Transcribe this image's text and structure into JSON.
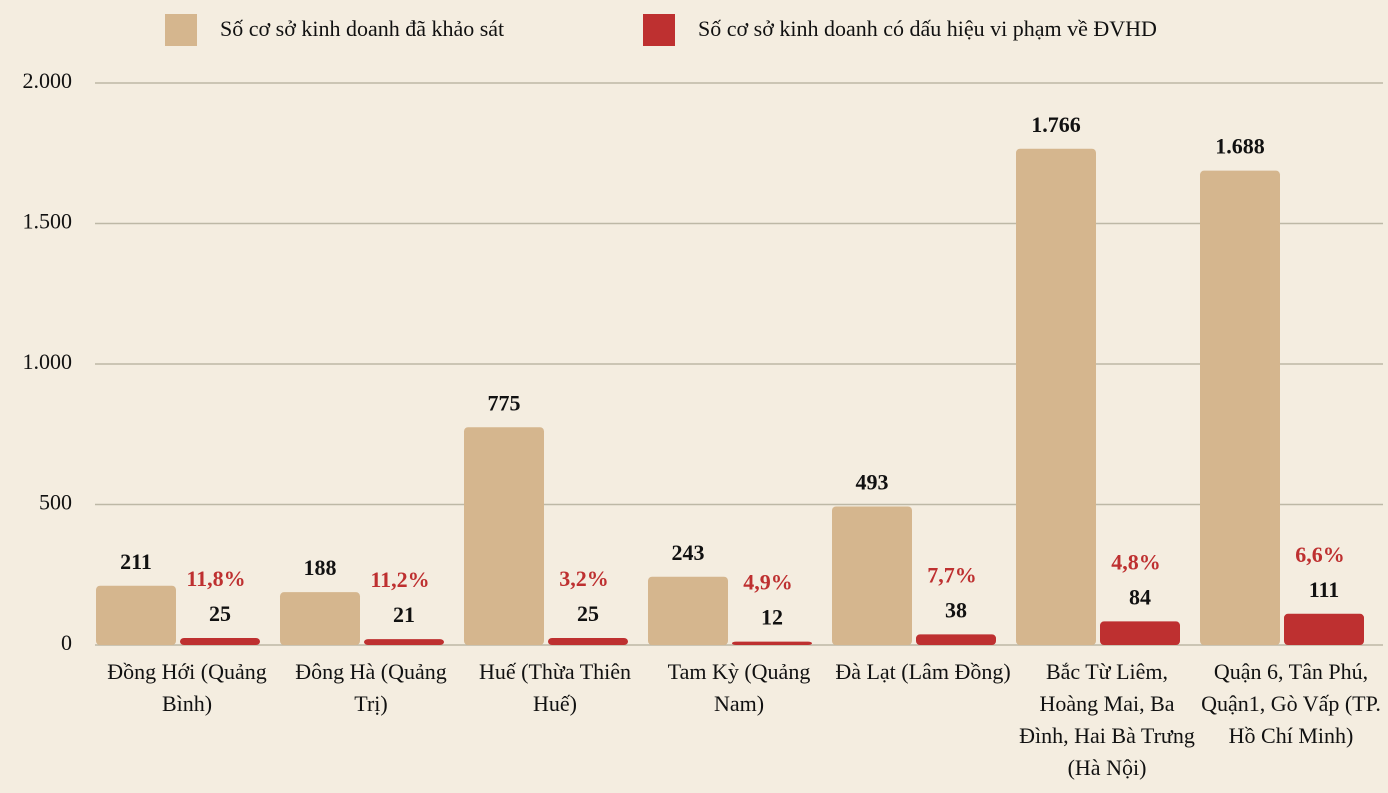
{
  "chart_data": {
    "type": "bar",
    "categories": [
      "Đồng Hới (Quảng Bình)",
      "Đông Hà (Quảng Trị)",
      "Huế (Thừa Thiên Huế)",
      "Tam Kỳ (Quảng Nam)",
      "Đà Lạt (Lâm Đồng)",
      "Bắc Từ Liêm, Hoàng Mai, Ba Đình, Hai Bà Trưng (Hà Nội)",
      "Quận 6, Tân Phú, Quận1, Gò Vấp (TP. Hồ Chí Minh)"
    ],
    "series": [
      {
        "name": "Số cơ sở kinh doanh đã khảo sát",
        "color": "#d5b68e",
        "values": [
          211,
          188,
          775,
          243,
          493,
          1766,
          1688
        ],
        "value_labels": [
          "211",
          "188",
          "775",
          "243",
          "493",
          "1.766",
          "1.688"
        ]
      },
      {
        "name": "Số cơ sở kinh doanh có dấu hiệu vi phạm về ĐVHD",
        "color": "#be3030",
        "values": [
          25,
          21,
          25,
          12,
          38,
          84,
          111
        ]
      }
    ],
    "annotations": [
      "11,8%",
      "11,2%",
      "3,2%",
      "4,9%",
      "7,7%",
      "4,8%",
      "6,6%"
    ],
    "annotation_color": "#be3030",
    "ylim": [
      0,
      2000
    ],
    "yticks": [
      0,
      500,
      {
        "value": 1000,
        "label": "1.000"
      },
      {
        "value": 1500,
        "label": "1.500"
      },
      {
        "value": 2000,
        "label": "2.000"
      }
    ],
    "grid": true,
    "legend": "top"
  }
}
